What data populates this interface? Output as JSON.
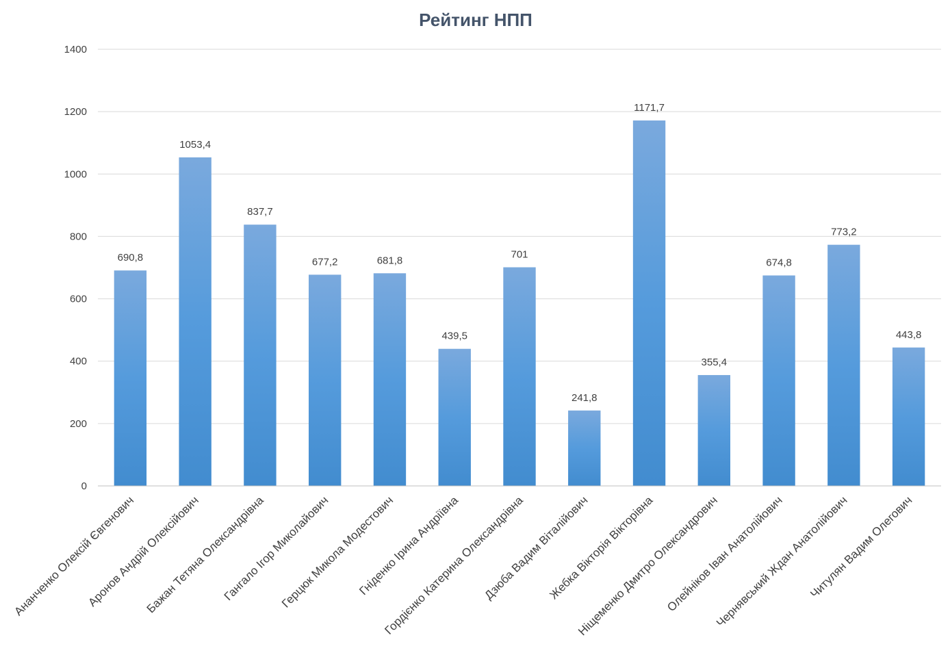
{
  "chart_data": {
    "type": "bar",
    "title": "Рейтинг НПП",
    "categories": [
      "Ананченко Олексій Євгенович",
      "Аронов Андрій Олексійович",
      "Бажан Тетяна Олександрівна",
      "Гангало Ігор Миколайович",
      "Герцюк Микола Модестович",
      "Гніденко Ірина Андріївна",
      "Гордієнко Катерина Олександрівна",
      "Дзюба Вадим Віталійович",
      "Жебка Вікторія Вікторівна",
      "Ніщеменко Дмитро Олександрович",
      "Олейніков Іван Анатолійович",
      "Чернявський Ждан Анатолійович",
      "Читулян Вадим Олегович"
    ],
    "values": [
      690.8,
      1053.4,
      837.7,
      677.2,
      681.8,
      439.5,
      701,
      241.8,
      1171.7,
      355.4,
      674.8,
      773.2,
      443.8
    ],
    "value_labels": [
      "690,8",
      "1053,4",
      "837,7",
      "677,2",
      "681,8",
      "439,5",
      "701",
      "241,8",
      "1171,7",
      "355,4",
      "674,8",
      "773,2",
      "443,8"
    ],
    "ylim": [
      0,
      1400
    ],
    "yticks": [
      "0",
      "200",
      "400",
      "600",
      "800",
      "1000",
      "1200",
      "1400"
    ],
    "grid": true,
    "legend": "none",
    "bar_color": "#5b9bd5"
  }
}
